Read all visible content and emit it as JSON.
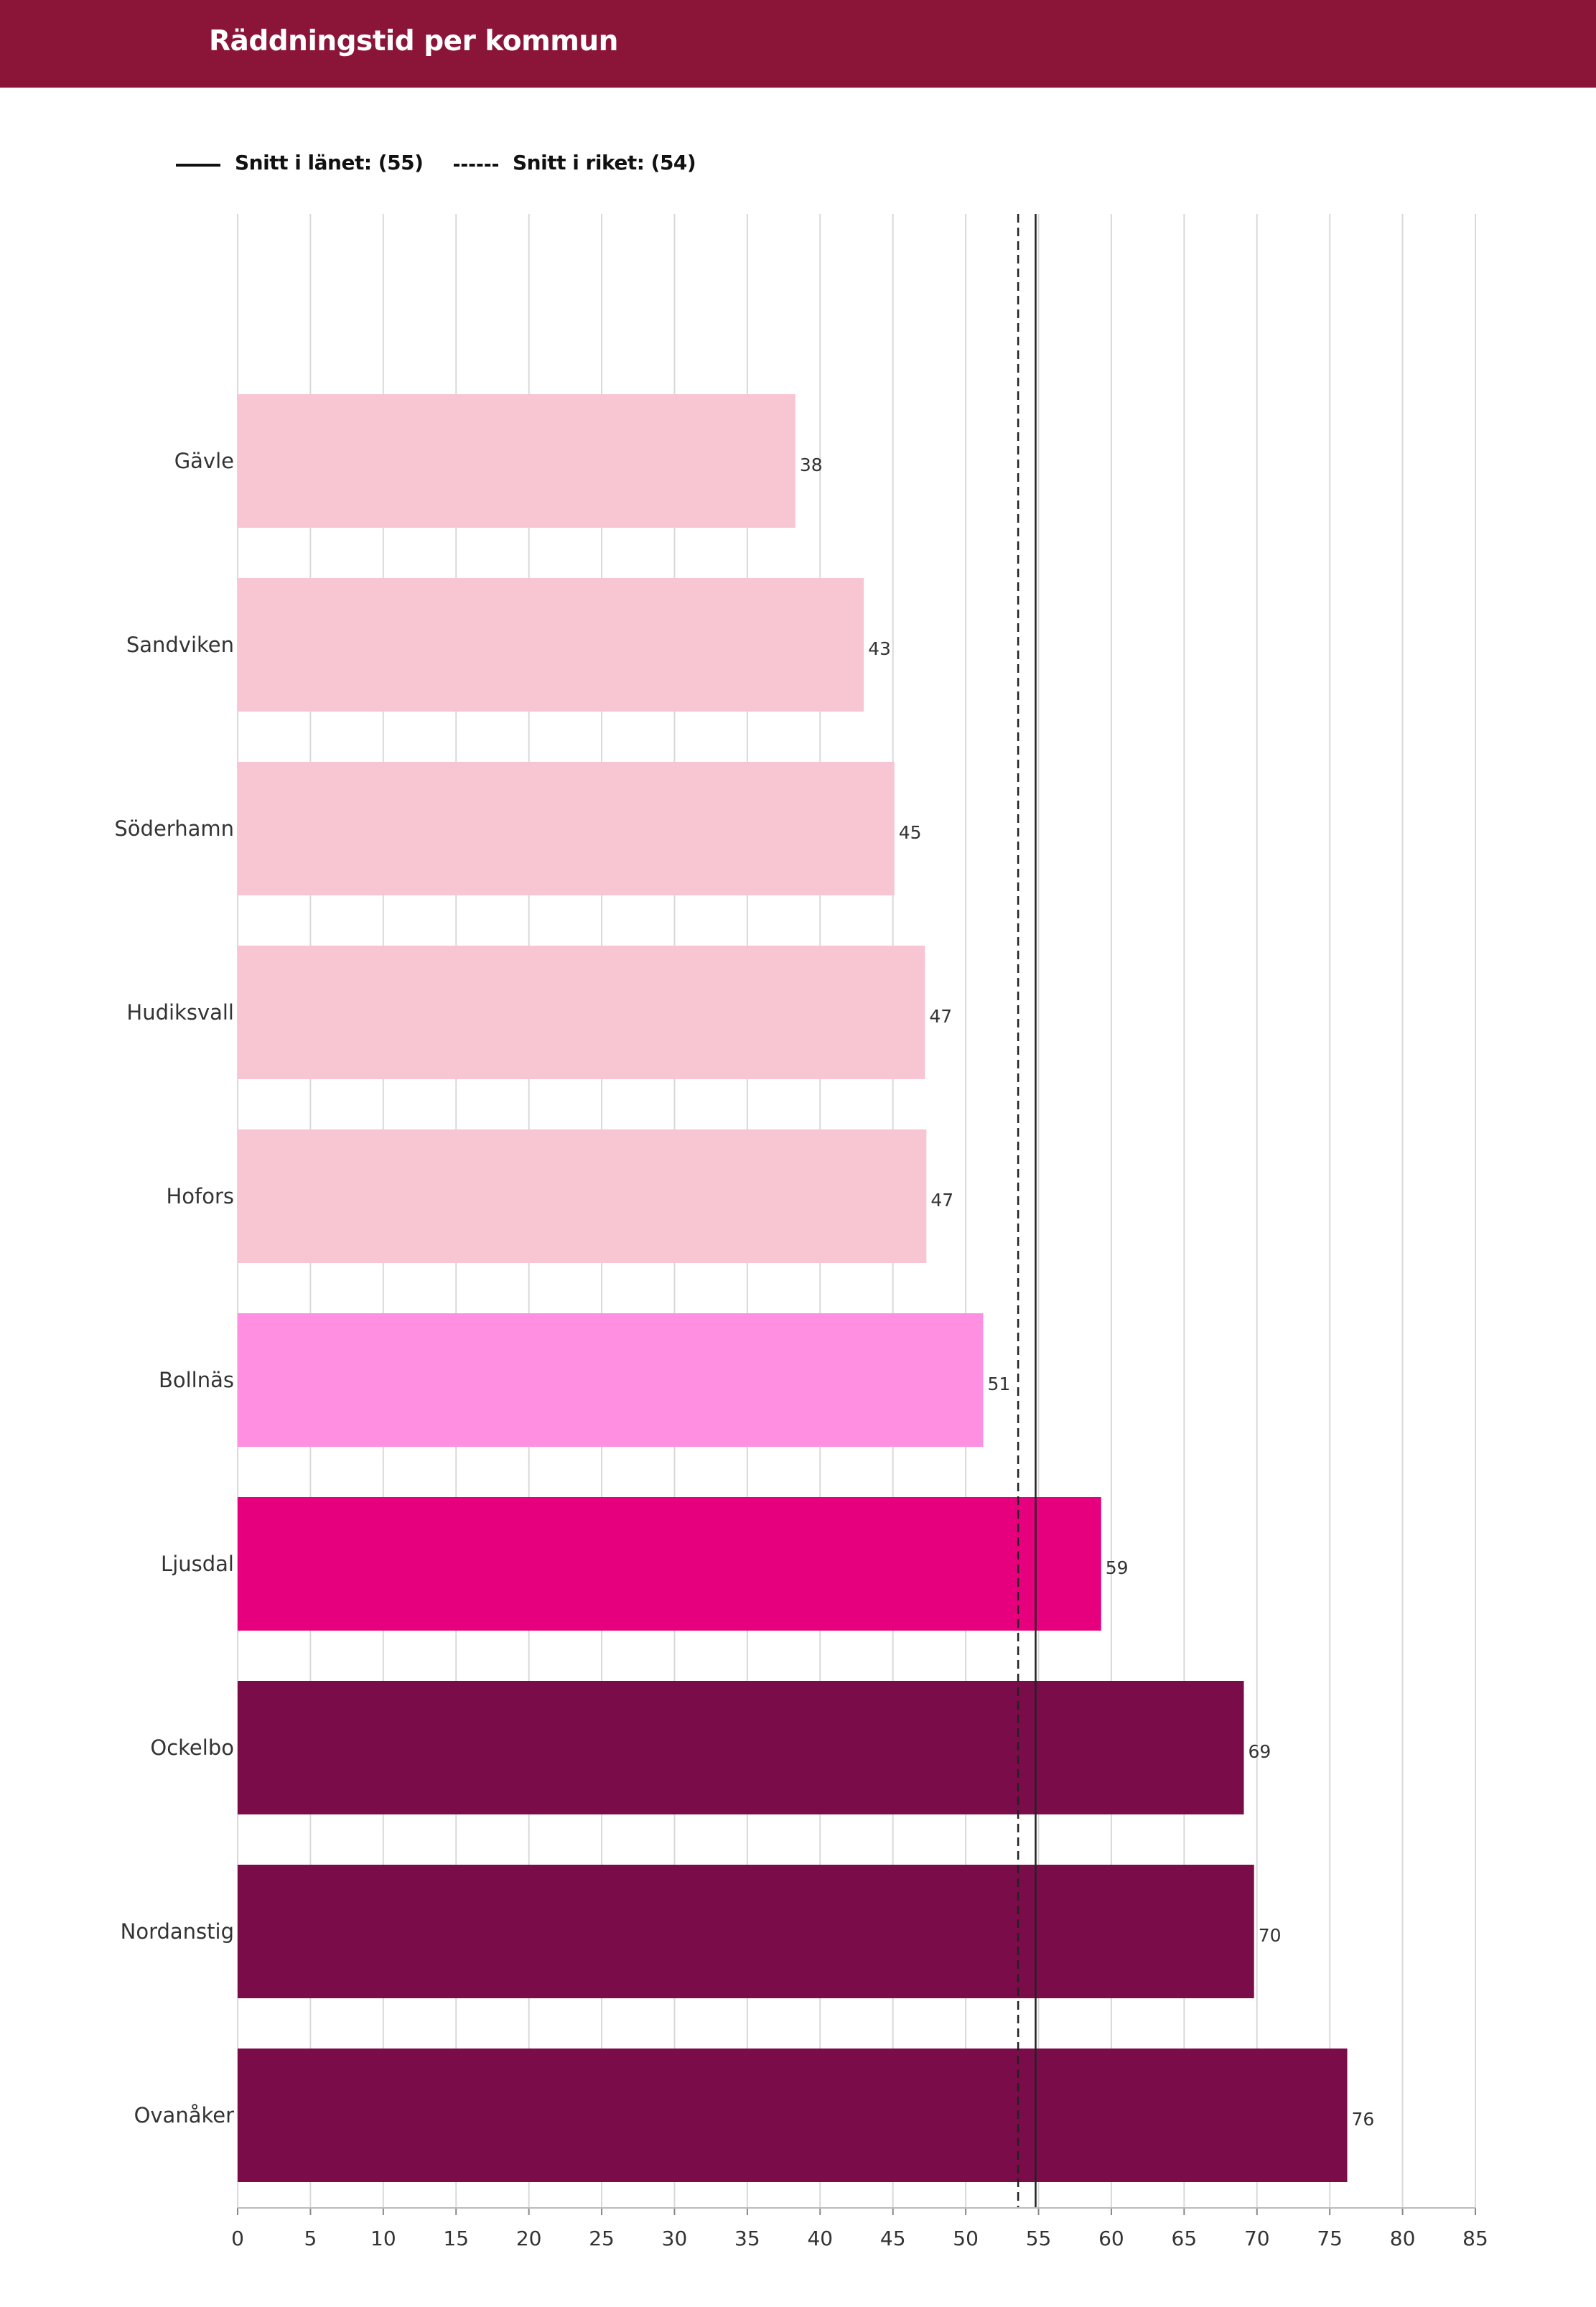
{
  "header": {
    "title": "Räddningstid per kommun"
  },
  "legend": [
    {
      "label": "Snitt i länet: (55)",
      "style": "solid"
    },
    {
      "label": "Snitt i riket: (54)",
      "style": "dashed"
    }
  ],
  "colors": {
    "header_bg": "#8b1538",
    "light_pink": "#f8c6d2",
    "mid_pink": "#ff8fe0",
    "hot_pink": "#e6007e",
    "dark_purple": "#7a0c4a",
    "gridline": "#d9d9d9",
    "reference_line": "#222222"
  },
  "chart_data": {
    "type": "bar",
    "orientation": "horizontal",
    "title": "Räddningstid per kommun",
    "xlabel": "",
    "ylabel": "",
    "xlim": [
      0,
      85
    ],
    "x_ticks": [
      0,
      5,
      10,
      15,
      20,
      25,
      30,
      35,
      40,
      45,
      50,
      55,
      60,
      65,
      70,
      75,
      80,
      85
    ],
    "grid": true,
    "legend_position": "top-left",
    "categories": [
      "Gävle",
      "Sandviken",
      "Söderhamn",
      "Hudiksvall",
      "Hofors",
      "Bollnäs",
      "Ljusdal",
      "Ockelbo",
      "Nordanstig",
      "Ovanåker"
    ],
    "values": [
      38.3,
      43.0,
      45.1,
      47.2,
      47.3,
      51.2,
      59.3,
      69.1,
      69.8,
      76.2
    ],
    "value_labels": [
      "38",
      "43",
      "45",
      "47",
      "47",
      "51",
      "59",
      "69",
      "70",
      "76"
    ],
    "bar_colors": [
      "#f8c6d2",
      "#f8c6d2",
      "#f8c6d2",
      "#f8c6d2",
      "#f8c6d2",
      "#ff8fe0",
      "#e6007e",
      "#7a0c4a",
      "#7a0c4a",
      "#7a0c4a"
    ],
    "reference_lines": [
      {
        "name": "Snitt i länet",
        "value": 54.8,
        "style": "solid"
      },
      {
        "name": "Snitt i riket",
        "value": 53.6,
        "style": "dashed"
      }
    ]
  }
}
